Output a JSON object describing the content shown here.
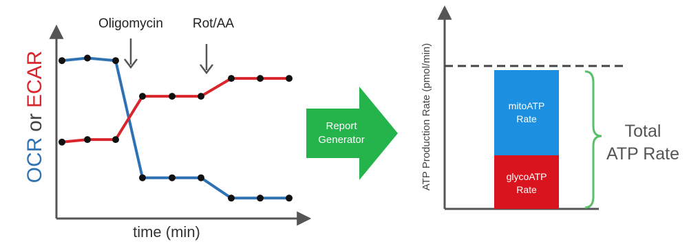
{
  "left_panel": {
    "y_label_ocr": "OCR",
    "y_label_or": "or",
    "y_label_ecar": "ECAR",
    "x_label": "time (min)",
    "annotations": [
      "Oligomycin",
      "Rot/AA"
    ]
  },
  "arrow": {
    "line1": "Report",
    "line2": "Generator"
  },
  "right_panel": {
    "y_label": "ATP Production Rate (pmol/min)",
    "mito_line1": "mitoATP",
    "mito_line2": "Rate",
    "glyco_line1": "glycoATP",
    "glyco_line2": "Rate",
    "total_line1": "Total",
    "total_line2": "ATP Rate"
  },
  "colors": {
    "ocr": "#2f72b4",
    "ecar": "#d9262c",
    "mito": "#1c8fe0",
    "glyco": "#d9141e",
    "arrow": "#25b34b",
    "bracket": "#59c06a",
    "axis": "#555555"
  },
  "chart_data": {
    "type": "line",
    "xlabel": "time (min)",
    "series": [
      {
        "name": "OCR",
        "values": [
          6.2,
          6.3,
          6.2,
          1.6,
          1.6,
          1.6,
          0.8,
          0.8,
          0.8
        ]
      },
      {
        "name": "ECAR",
        "values": [
          3.0,
          3.1,
          3.1,
          4.8,
          4.8,
          4.8,
          5.5,
          5.5,
          5.5
        ]
      }
    ],
    "ylim": [
      0,
      7.5
    ]
  }
}
